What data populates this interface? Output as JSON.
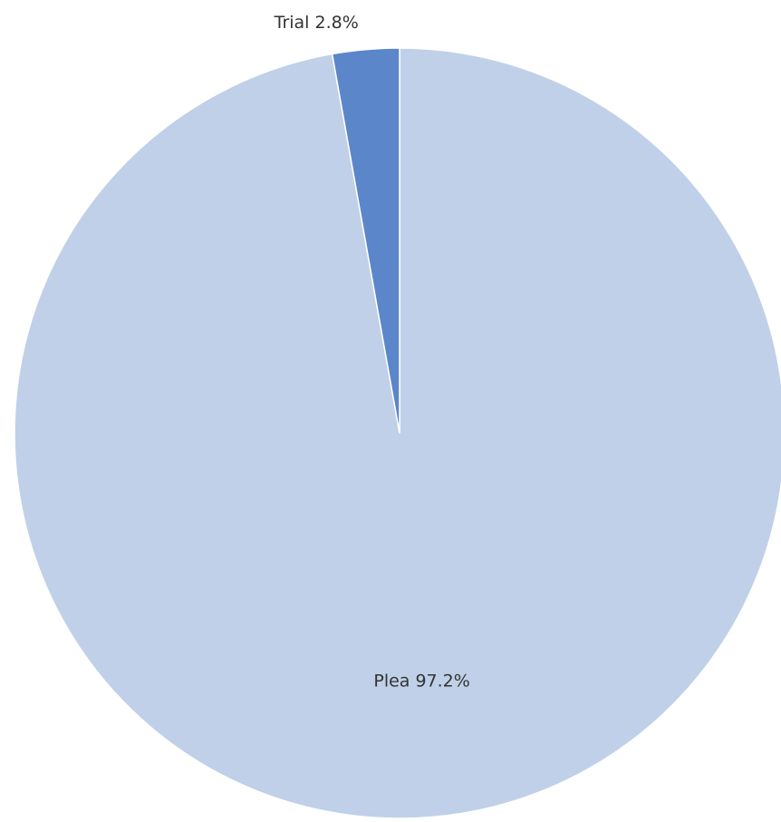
{
  "chart_data": {
    "type": "pie",
    "title": "",
    "slices": [
      {
        "label": "Plea",
        "value": 97.2,
        "display": "Plea 97.2%",
        "color": "#c0d0e8"
      },
      {
        "label": "Trial",
        "value": 2.8,
        "display": "Trial 2.8%",
        "color": "#5b86c9"
      }
    ],
    "start_angle_deg": 0,
    "direction": "clockwise",
    "legend": "none",
    "data_labels": true
  }
}
